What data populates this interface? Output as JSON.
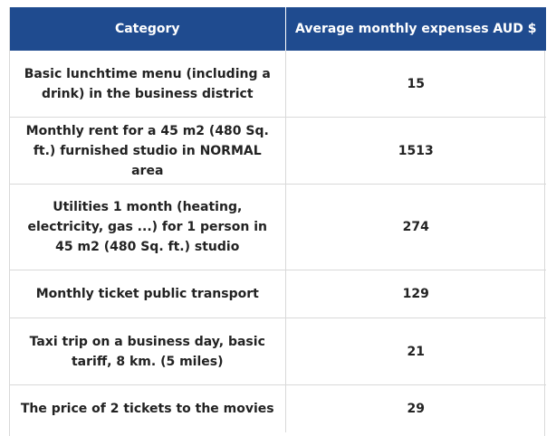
{
  "header": {
    "category": "Category",
    "expenses": "Average monthly expenses AUD $"
  },
  "rows": [
    {
      "category": "Basic lunchtime menu (including a drink) in the business district",
      "value": "15"
    },
    {
      "category": "Monthly rent for a 45 m2 (480 Sq. ft.) furnished studio in NORMAL area",
      "value": "1513"
    },
    {
      "category": "Utilities 1 month (heating, electricity, gas ...) for 1 person in 45 m2 (480 Sq. ft.) studio",
      "value": "274"
    },
    {
      "category": "Monthly ticket public transport",
      "value": "129"
    },
    {
      "category": "Taxi trip on a business day, basic tariff, 8 km. (5 miles)",
      "value": "21"
    },
    {
      "category": "The price of 2 tickets to the movies",
      "value": "29"
    }
  ]
}
